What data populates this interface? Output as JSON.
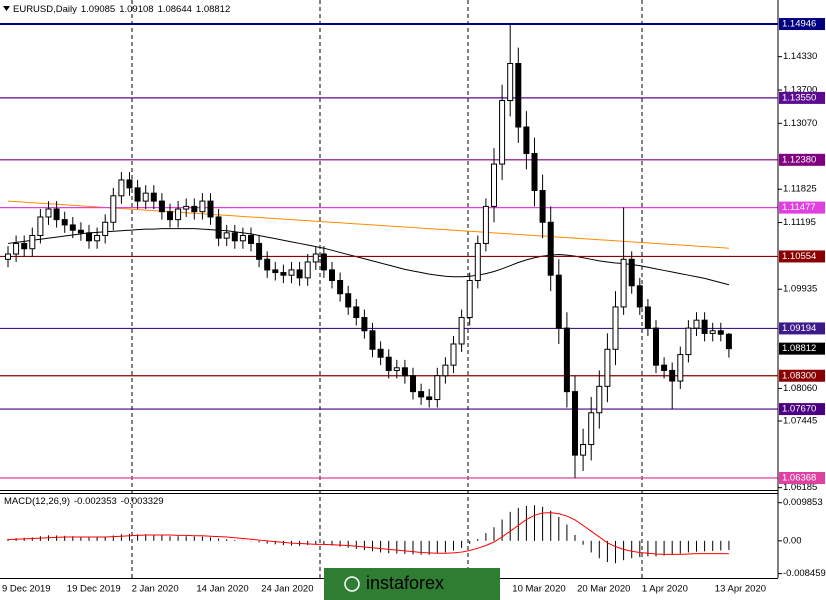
{
  "chart_data": [
    {
      "type": "candlestick",
      "title": "EURUSD,Daily",
      "categories": [
        "9 Dec 2019",
        null,
        null,
        null,
        null,
        null,
        null,
        null,
        "19 Dec 2019",
        null,
        null,
        null,
        null,
        null,
        null,
        null,
        "2 Jan 2020",
        null,
        null,
        null,
        null,
        null,
        null,
        null,
        "14 Jan 2020",
        null,
        null,
        null,
        null,
        null,
        null,
        null,
        "24 Jan 2020",
        null,
        null,
        null,
        null,
        null,
        null,
        null,
        null,
        null,
        null,
        null,
        null,
        null,
        null,
        null,
        null,
        null,
        null,
        null,
        null,
        null,
        null,
        null,
        null,
        null,
        null,
        null,
        null,
        null,
        null,
        "10 Mar 2020",
        null,
        null,
        null,
        null,
        null,
        null,
        null,
        "20 Mar 2020",
        null,
        null,
        null,
        null,
        null,
        null,
        null,
        "1 Apr 2020",
        null,
        null,
        null,
        null,
        null,
        null,
        null,
        null,
        "13 Apr 2020",
        null
      ],
      "open": [
        1.105,
        1.106,
        1.108,
        1.107,
        1.1095,
        1.113,
        1.1145,
        1.1125,
        1.1115,
        1.1105,
        1.11,
        1.1085,
        1.1095,
        1.112,
        1.117,
        1.12,
        1.1185,
        1.116,
        1.1175,
        1.116,
        1.114,
        1.1125,
        1.1145,
        1.115,
        1.114,
        1.116,
        1.113,
        1.109,
        1.11,
        1.1085,
        1.1095,
        1.108,
        1.105,
        1.103,
        1.1025,
        1.102,
        1.103,
        1.1015,
        1.1045,
        1.106,
        1.103,
        1.101,
        1.0985,
        1.096,
        1.094,
        1.0915,
        1.088,
        1.0865,
        1.084,
        1.0845,
        1.083,
        1.08,
        1.079,
        1.0785,
        1.083,
        1.085,
        1.089,
        1.094,
        1.101,
        1.108,
        1.115,
        1.123,
        1.135,
        1.142,
        1.13,
        1.125,
        1.118,
        1.112,
        1.102,
        1.092,
        1.08,
        1.068,
        1.07,
        1.076,
        1.081,
        1.088,
        1.096,
        1.105,
        1.1,
        1.096,
        1.092,
        1.085,
        1.084,
        1.082,
        1.087,
        1.092,
        1.0935,
        1.091,
        1.0915,
        1.09085
      ],
      "high": [
        1.1075,
        1.1095,
        1.1095,
        1.111,
        1.1145,
        1.116,
        1.116,
        1.114,
        1.113,
        1.112,
        1.1115,
        1.111,
        1.1135,
        1.1185,
        1.1215,
        1.1215,
        1.12,
        1.119,
        1.119,
        1.1175,
        1.1155,
        1.116,
        1.1165,
        1.1165,
        1.1175,
        1.1175,
        1.1145,
        1.1115,
        1.1115,
        1.111,
        1.111,
        1.1095,
        1.1065,
        1.1045,
        1.104,
        1.1045,
        1.1045,
        1.106,
        1.1075,
        1.1075,
        1.1045,
        1.1025,
        1.1,
        1.0975,
        1.0955,
        1.093,
        1.0895,
        1.088,
        1.086,
        1.086,
        1.0845,
        1.0815,
        1.0805,
        1.0845,
        1.0865,
        1.0905,
        1.0955,
        1.1025,
        1.1095,
        1.1165,
        1.126,
        1.138,
        1.14946,
        1.145,
        1.133,
        1.128,
        1.121,
        1.115,
        1.105,
        1.095,
        1.083,
        1.073,
        1.079,
        1.084,
        1.091,
        1.099,
        1.1148,
        1.1065,
        1.1015,
        1.0975,
        1.0935,
        1.0865,
        1.0855,
        1.0885,
        1.0935,
        1.095,
        1.095,
        1.093,
        1.093,
        1.09108
      ],
      "low": [
        1.1035,
        1.1045,
        1.1055,
        1.1055,
        1.108,
        1.1115,
        1.111,
        1.11,
        1.109,
        1.1085,
        1.107,
        1.107,
        1.108,
        1.1105,
        1.1155,
        1.117,
        1.1145,
        1.1145,
        1.1145,
        1.1125,
        1.111,
        1.111,
        1.113,
        1.1125,
        1.1125,
        1.1115,
        1.1075,
        1.1075,
        1.107,
        1.107,
        1.1065,
        1.1035,
        1.1015,
        1.101,
        1.1005,
        1.1005,
        1.1,
        1.1,
        1.103,
        1.1015,
        1.0995,
        1.097,
        1.0945,
        1.0925,
        1.09,
        1.0865,
        1.085,
        1.0825,
        1.0825,
        1.0815,
        1.0785,
        1.0775,
        1.077,
        1.077,
        1.0815,
        1.0835,
        1.0875,
        1.0925,
        1.0995,
        1.1065,
        1.112,
        1.12,
        1.132,
        1.127,
        1.122,
        1.115,
        1.109,
        1.099,
        1.089,
        1.077,
        1.0637,
        1.065,
        1.067,
        1.073,
        1.078,
        1.085,
        1.0945,
        1.0985,
        1.0945,
        1.0905,
        1.0835,
        1.0825,
        1.0767,
        1.0805,
        1.0855,
        1.0905,
        1.0895,
        1.0895,
        1.0895,
        1.08644
      ],
      "close": [
        1.106,
        1.108,
        1.107,
        1.1095,
        1.113,
        1.1145,
        1.1125,
        1.1115,
        1.1105,
        1.11,
        1.1085,
        1.1095,
        1.112,
        1.117,
        1.12,
        1.1185,
        1.116,
        1.1175,
        1.116,
        1.114,
        1.1125,
        1.1145,
        1.115,
        1.114,
        1.116,
        1.113,
        1.109,
        1.11,
        1.1085,
        1.1095,
        1.108,
        1.105,
        1.103,
        1.1025,
        1.102,
        1.103,
        1.1015,
        1.1045,
        1.106,
        1.103,
        1.101,
        1.0985,
        1.096,
        1.094,
        1.0915,
        1.088,
        1.0865,
        1.084,
        1.0845,
        1.083,
        1.08,
        1.079,
        1.0785,
        1.083,
        1.085,
        1.089,
        1.094,
        1.101,
        1.108,
        1.115,
        1.123,
        1.135,
        1.142,
        1.13,
        1.125,
        1.118,
        1.112,
        1.102,
        1.092,
        1.08,
        1.068,
        1.07,
        1.076,
        1.081,
        1.088,
        1.096,
        1.105,
        1.1,
        1.096,
        1.092,
        1.085,
        1.084,
        1.082,
        1.087,
        1.092,
        1.0935,
        1.091,
        1.0915,
        1.09085,
        1.08812
      ],
      "up_color": "#ffffff",
      "down_color": "#000000",
      "lines": [
        {
          "color": "#ff8c00",
          "values": [
            1.116,
            1.1159,
            1.1158,
            1.1157,
            1.1156,
            1.1155,
            1.1154,
            1.1153,
            1.1152,
            1.1151,
            1.115,
            1.1149,
            1.1148,
            1.1147,
            1.1146,
            1.1145,
            1.1144,
            1.1143,
            1.1142,
            1.1141,
            1.114,
            1.1139,
            1.1138,
            1.1137,
            1.1136,
            1.1135,
            1.1134,
            1.1133,
            1.1132,
            1.1131,
            1.113,
            1.1129,
            1.1128,
            1.1127,
            1.1126,
            1.1125,
            1.1124,
            1.1123,
            1.1122,
            1.1121,
            1.112,
            1.1119,
            1.1118,
            1.1117,
            1.1116,
            1.1115,
            1.1114,
            1.1113,
            1.1112,
            1.1111,
            1.111,
            1.1109,
            1.1108,
            1.1107,
            1.1106,
            1.1105,
            1.1104,
            1.1103,
            1.1102,
            1.1101,
            1.11,
            1.1099,
            1.1098,
            1.1097,
            1.1096,
            1.1095,
            1.1094,
            1.1093,
            1.1092,
            1.1091,
            1.109,
            1.1089,
            1.1088,
            1.1087,
            1.1086,
            1.1085,
            1.1084,
            1.1083,
            1.1082,
            1.1081,
            1.108,
            1.1079,
            1.1078,
            1.1077,
            1.1076,
            1.1075,
            1.1074,
            1.1073,
            1.1072,
            1.1071
          ]
        },
        {
          "color": "#000000",
          "values": [
            1.108,
            1.1082,
            1.1084,
            1.1086,
            1.1088,
            1.109,
            1.1092,
            1.1094,
            1.1096,
            1.1098,
            1.11,
            1.1101,
            1.1102,
            1.1103,
            1.1104,
            1.1105,
            1.1106,
            1.1107,
            1.1107,
            1.1108,
            1.1108,
            1.1108,
            1.1108,
            1.1108,
            1.1107,
            1.1106,
            1.1105,
            1.1104,
            1.1102,
            1.11,
            1.1098,
            1.1095,
            1.1092,
            1.1089,
            1.1086,
            1.1083,
            1.108,
            1.1077,
            1.1074,
            1.1071,
            1.1067,
            1.1063,
            1.1059,
            1.1055,
            1.1051,
            1.1047,
            1.1043,
            1.1039,
            1.1035,
            1.1031,
            1.1028,
            1.1025,
            1.1022,
            1.102,
            1.1018,
            1.1017,
            1.1017,
            1.1018,
            1.102,
            1.1023,
            1.1027,
            1.1032,
            1.1038,
            1.1044,
            1.1049,
            1.1053,
            1.1056,
            1.1058,
            1.1059,
            1.1058,
            1.1056,
            1.1053,
            1.105,
            1.1047,
            1.1045,
            1.1043,
            1.1042,
            1.104,
            1.1038,
            1.1035,
            1.1032,
            1.1029,
            1.1026,
            1.1023,
            1.102,
            1.1017,
            1.1014,
            1.101,
            1.1006,
            1.1002
          ]
        }
      ],
      "levels": [
        {
          "value": 1.14946,
          "color": "#000080"
        },
        {
          "value": 1.1355,
          "label": "1.13550",
          "color": "#5b0a91"
        },
        {
          "value": 1.1238,
          "label": "1.12380",
          "color": "#800080"
        },
        {
          "value": 1.11477,
          "color": "#e040e0"
        },
        {
          "value": 1.10554,
          "color": "#8b0000"
        },
        {
          "value": 1.09194,
          "color": "#3c1a8c"
        },
        {
          "value": 1.083,
          "label": "1.08300",
          "color": "#8b0000"
        },
        {
          "value": 1.0767,
          "label": "1.07670",
          "color": "#4b0082"
        },
        {
          "value": 1.06368,
          "color": "#e040a0"
        }
      ],
      "ylim": [
        1.06141,
        1.154
      ],
      "yticks": [
        {
          "value": 1.1433,
          "label": "1.14330"
        },
        {
          "value": 1.137,
          "label": "1.13700"
        },
        {
          "value": 1.1307,
          "label": "1.13070"
        },
        {
          "value": 1.11825,
          "label": "1.11825"
        },
        {
          "value": 1.11195,
          "label": "1.11195"
        },
        {
          "value": 1.09935,
          "label": "1.09935"
        },
        {
          "value": 1.0806,
          "label": "1.08060"
        },
        {
          "value": 1.07445,
          "label": "1.07445"
        },
        {
          "value": 1.06185,
          "label": "1.06185"
        }
      ],
      "watermark": "instaforex"
    },
    {
      "type": "macd",
      "title": "MACD(12,26,9)",
      "color": "#000000",
      "values": [
        0.0005,
        0.0007,
        0.0008,
        0.0009,
        0.0012,
        0.0014,
        0.0014,
        0.0013,
        0.0012,
        0.0011,
        0.001,
        0.001,
        0.0011,
        0.0014,
        0.0017,
        0.0018,
        0.0017,
        0.0017,
        0.0016,
        0.0014,
        0.0012,
        0.0012,
        0.0012,
        0.0011,
        0.0011,
        0.0009,
        0.0006,
        0.0004,
        0.0002,
        0.0001,
        -0.0001,
        -0.0004,
        -0.0007,
        -0.0009,
        -0.0011,
        -0.0012,
        -0.0013,
        -0.0011,
        -0.0009,
        -0.001,
        -0.0012,
        -0.0015,
        -0.0018,
        -0.0021,
        -0.0024,
        -0.0027,
        -0.003,
        -0.0032,
        -0.0033,
        -0.0034,
        -0.0035,
        -0.0036,
        -0.0036,
        -0.0033,
        -0.003,
        -0.0025,
        -0.0018,
        -0.0008,
        0.0005,
        0.002,
        0.0035,
        0.0055,
        0.0075,
        0.0085,
        0.009,
        0.0092,
        0.0088,
        0.0078,
        0.0062,
        0.0042,
        0.0015,
        -0.001,
        -0.003,
        -0.0045,
        -0.0055,
        -0.0058,
        -0.005,
        -0.0045,
        -0.0042,
        -0.004,
        -0.004,
        -0.0038,
        -0.0036,
        -0.0033,
        -0.003,
        -0.0028,
        -0.0027,
        -0.0026,
        -0.0025,
        -0.002353
      ],
      "signal": {
        "color": "#ff0000",
        "values": [
          0.0003,
          0.0004,
          0.0005,
          0.0006,
          0.0007,
          0.0008,
          0.0009,
          0.001,
          0.001,
          0.001,
          0.001,
          0.001,
          0.001,
          0.0011,
          0.0012,
          0.0013,
          0.0014,
          0.0015,
          0.0015,
          0.0015,
          0.0015,
          0.0014,
          0.0014,
          0.0013,
          0.0013,
          0.0012,
          0.0011,
          0.001,
          0.0008,
          0.0006,
          0.0004,
          0.0002,
          0.0,
          -0.0002,
          -0.0004,
          -0.0006,
          -0.0007,
          -0.0008,
          -0.0009,
          -0.0009,
          -0.001,
          -0.0011,
          -0.0012,
          -0.0014,
          -0.0016,
          -0.0018,
          -0.002,
          -0.0022,
          -0.0024,
          -0.0026,
          -0.0028,
          -0.003,
          -0.0031,
          -0.0032,
          -0.0032,
          -0.0031,
          -0.0029,
          -0.0025,
          -0.0019,
          -0.0012,
          -0.0003,
          0.001,
          0.0025,
          0.004,
          0.0055,
          0.0066,
          0.0072,
          0.0073,
          0.007,
          0.0064,
          0.0054,
          0.004,
          0.0025,
          0.001,
          -0.0005,
          -0.0015,
          -0.0022,
          -0.0027,
          -0.003,
          -0.0032,
          -0.0034,
          -0.0035,
          -0.0035,
          -0.0035,
          -0.0034,
          -0.0033,
          -0.0033,
          -0.0033,
          -0.0033,
          -0.003329
        ]
      },
      "ylim": [
        -0.0096,
        0.0121
      ],
      "yticks": [
        0.009853,
        {
          "value": 0,
          "label": "0.00"
        },
        -0.008459
      ]
    }
  ]
}
